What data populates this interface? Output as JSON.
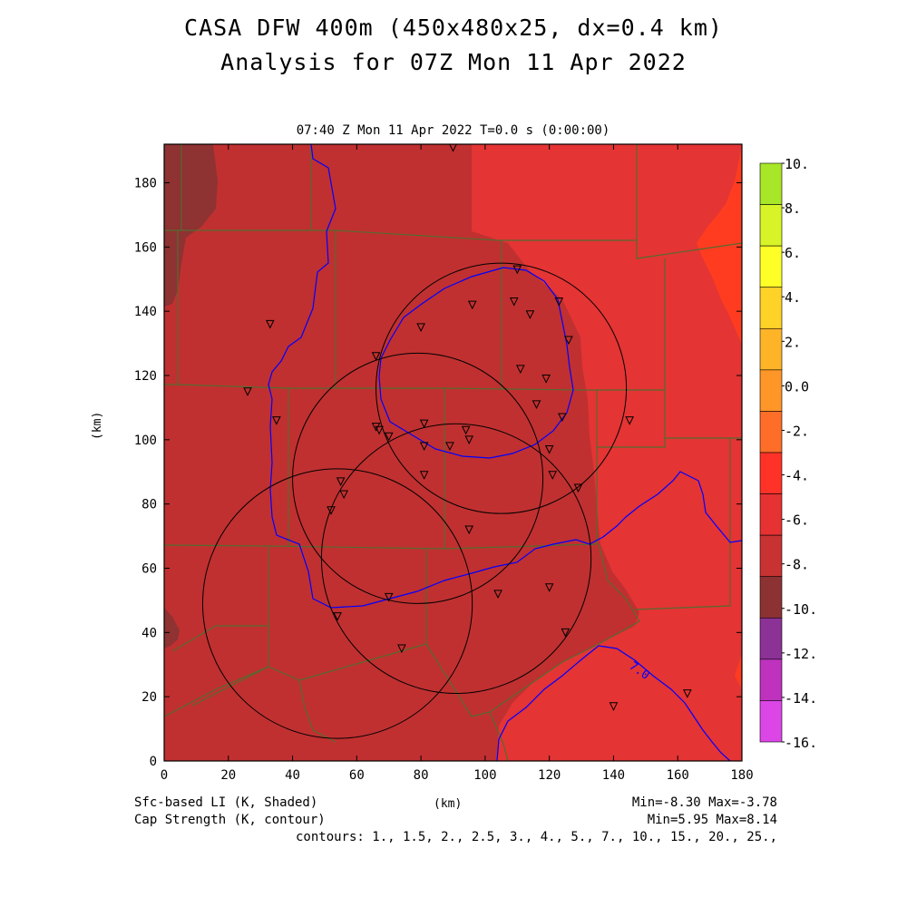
{
  "title": {
    "line1": "CASA DFW 400m (450x480x25, dx=0.4 km)",
    "line2": "Analysis for 07Z Mon 11 Apr 2022"
  },
  "subtitle": "07:40 Z Mon 11 Apr 2022    T=0.0 s (0:00:00)",
  "axes": {
    "xlabel": "(km)",
    "ylabel": "(km)",
    "xlim": [
      0,
      180
    ],
    "ylim": [
      0,
      192
    ],
    "xticks": [
      "0",
      "20",
      "40",
      "60",
      "80",
      "100",
      "120",
      "140",
      "160",
      "180"
    ],
    "yticks": [
      "0",
      "20",
      "40",
      "60",
      "80",
      "100",
      "120",
      "140",
      "160",
      "180"
    ]
  },
  "footer": {
    "left1": "Sfc-based LI (K, Shaded)",
    "left2": "Cap Strength (K, contour)",
    "right1": "Min=-8.30 Max=-3.78",
    "right2": "Min=5.95 Max=8.14",
    "contours": "contours: 1., 1.5, 2., 2.5, 3., 4., 5., 7., 10., 15., 20., 25.,"
  },
  "colorbar": {
    "labels": [
      "10.",
      "8.",
      "6.",
      "4.",
      "2.",
      "0.0",
      "-2.",
      "-4.",
      "-6.",
      "-8.",
      "-10.",
      "-12.",
      "-14.",
      "-16."
    ],
    "colors": [
      "#a8e628",
      "#d8f428",
      "#ffff28",
      "#ffd228",
      "#ffb428",
      "#ff9628",
      "#ff6e28",
      "#ff3228",
      "#e63232",
      "#c83232",
      "#8c3232",
      "#8c3296",
      "#be32be",
      "#dc46e6"
    ]
  },
  "contour_label": "7.0",
  "colors": {
    "field_dark": "#c03030",
    "field_mid": "#e43434",
    "field_darkest": "#8e3232",
    "field_bright": "#ff3c20",
    "county_lines": "#556b2f",
    "cap_contour": "#0000ff",
    "radar_rings": "#000000"
  },
  "chart_data": {
    "type": "map",
    "shaded_field": "Sfc-based LI (K)",
    "contour_field": "Cap Strength (K)",
    "field_min": -8.3,
    "field_max": -3.78,
    "contour_min": 5.95,
    "contour_max": 8.14,
    "radar_rings": [
      {
        "cx": 105,
        "cy": 116,
        "r": 39
      },
      {
        "cx": 79,
        "cy": 88,
        "r": 39
      },
      {
        "cx": 91,
        "cy": 63,
        "r": 42
      },
      {
        "cx": 54,
        "cy": 49,
        "r": 42
      }
    ],
    "stations": [
      [
        90,
        191
      ],
      [
        110,
        153
      ],
      [
        109,
        143
      ],
      [
        114,
        139
      ],
      [
        123,
        143
      ],
      [
        96,
        142
      ],
      [
        80,
        135
      ],
      [
        126,
        131
      ],
      [
        33,
        136
      ],
      [
        66,
        126
      ],
      [
        111,
        122
      ],
      [
        119,
        119
      ],
      [
        26,
        115
      ],
      [
        116,
        111
      ],
      [
        124,
        107
      ],
      [
        145,
        106
      ],
      [
        35,
        106
      ],
      [
        66,
        104
      ],
      [
        67,
        103
      ],
      [
        70,
        101
      ],
      [
        81,
        105
      ],
      [
        94,
        103
      ],
      [
        95,
        100
      ],
      [
        89,
        98
      ],
      [
        81,
        98
      ],
      [
        120,
        97
      ],
      [
        81,
        89
      ],
      [
        121,
        89
      ],
      [
        129,
        85
      ],
      [
        55,
        87
      ],
      [
        56,
        83
      ],
      [
        52,
        78
      ],
      [
        95,
        72
      ],
      [
        70,
        51
      ],
      [
        104,
        52
      ],
      [
        120,
        54
      ],
      [
        54,
        45
      ],
      [
        125,
        40
      ],
      [
        74,
        35
      ],
      [
        140,
        17
      ],
      [
        163,
        21
      ]
    ]
  }
}
